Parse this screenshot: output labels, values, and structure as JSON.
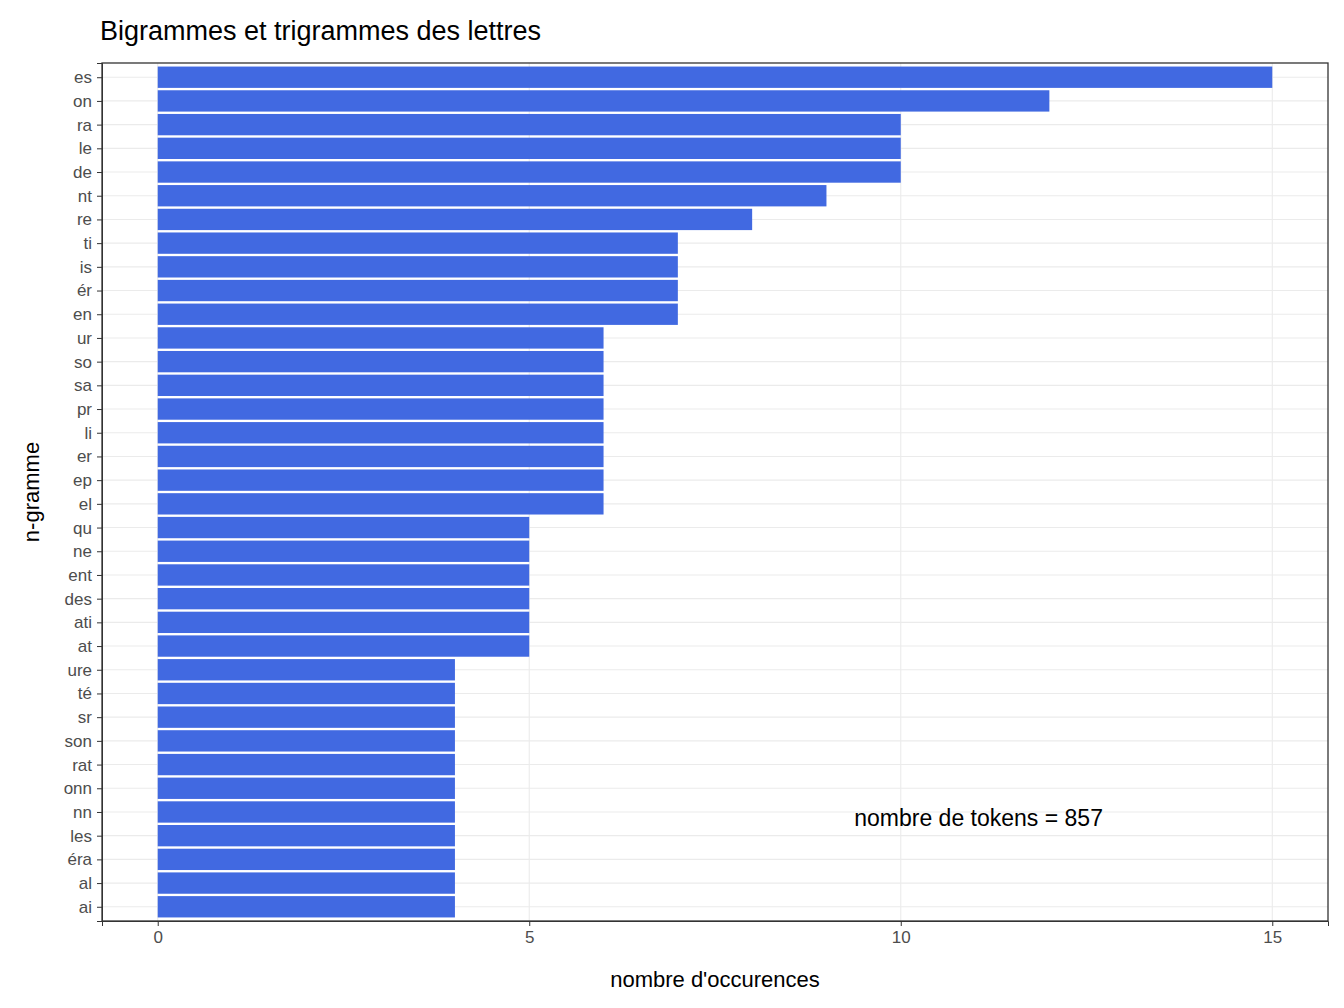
{
  "chart_data": {
    "type": "bar",
    "orientation": "horizontal",
    "title": "Bigrammes et trigrammes des lettres",
    "x_label": "nombre d'occurences",
    "y_label": "n-gramme",
    "categories": [
      "es",
      "on",
      "ra",
      "le",
      "de",
      "nt",
      "re",
      "ti",
      "is",
      "ér",
      "en",
      "ur",
      "so",
      "sa",
      "pr",
      "li",
      "er",
      "ep",
      "el",
      "qu",
      "ne",
      "ent",
      "des",
      "ati",
      "at",
      "ure",
      "té",
      "sr",
      "son",
      "rat",
      "onn",
      "nn",
      "les",
      "éra",
      "al",
      "ai"
    ],
    "values": [
      15,
      12,
      10,
      10,
      10,
      9,
      8,
      7,
      7,
      7,
      7,
      6,
      6,
      6,
      6,
      6,
      6,
      6,
      6,
      5,
      5,
      5,
      5,
      5,
      5,
      4,
      4,
      4,
      4,
      4,
      4,
      4,
      4,
      4,
      4,
      4
    ],
    "color": "#4169e1",
    "xlim": [
      -0.75,
      15.75
    ],
    "xticks": [
      0,
      5,
      10,
      15
    ],
    "grid": true,
    "annotation": "nombre de tokens = 857"
  }
}
